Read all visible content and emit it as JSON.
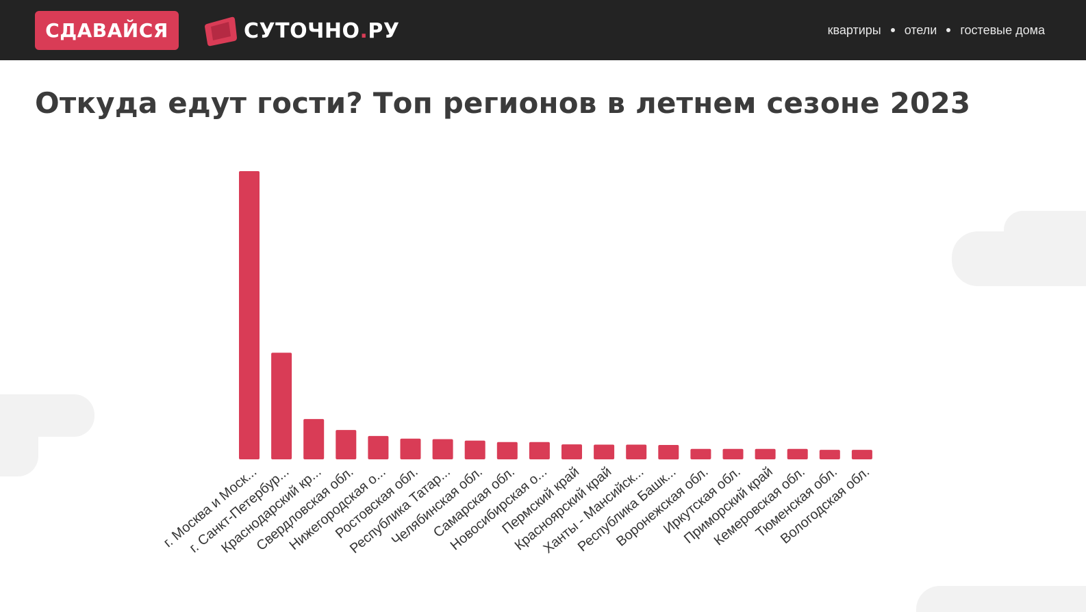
{
  "header": {
    "badge_label": "СДАВАЙСЯ",
    "brand_name": "СУТОЧНО",
    "brand_dot": ".",
    "brand_suffix": "РУ",
    "nav": [
      "квартиры",
      "отели",
      "гостевые дома"
    ]
  },
  "colors": {
    "bar": "#d93c56",
    "header_bg": "#232323",
    "accent": "#d93c56"
  },
  "chart_data": {
    "type": "bar",
    "title": "Откуда едут гости? Топ регионов в летнем сезоне 2023",
    "xlabel": "",
    "ylabel": "",
    "grid": false,
    "legend": "none",
    "ylim": [
      0,
      100
    ],
    "categories": [
      "г. Москва и Моск...",
      "г. Санкт-Петербур...",
      "Краснодарский кр...",
      "Свердловская обл.",
      "Нижегородская о...",
      "Ростовская обл.",
      "Республика Татар...",
      "Челябинская обл.",
      "Самарская обл.",
      "Новосибирская о...",
      "Пермский край",
      "Красноярский край",
      "Ханты - Мансийск...",
      "Республика Башк...",
      "Воронежская обл.",
      "Иркутская обл.",
      "Приморский край",
      "Кемеровская обл.",
      "Тюменская обл.",
      "Вологодская обл."
    ],
    "values": [
      100,
      37,
      14,
      10.2,
      8.1,
      7.2,
      7.0,
      6.5,
      6.0,
      6.0,
      5.2,
      5.1,
      5.1,
      5.0,
      3.6,
      3.6,
      3.6,
      3.6,
      3.3,
      3.3
    ]
  }
}
